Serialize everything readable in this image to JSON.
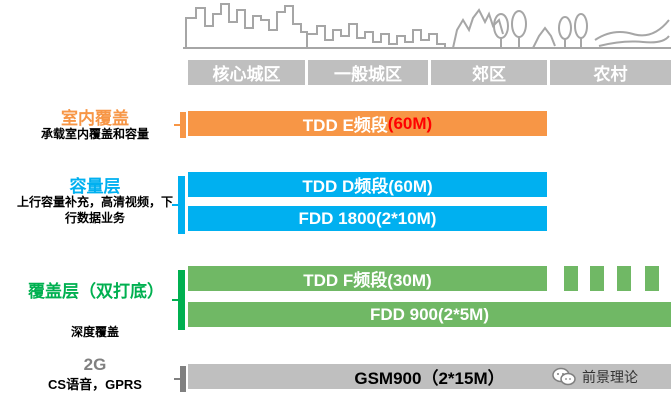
{
  "zones": [
    "核心城区",
    "一般城区",
    "郊区",
    "农村"
  ],
  "layers": {
    "indoor": {
      "title": "室内覆盖",
      "subtitle": "承载室内覆盖和容量",
      "color": "#f79646"
    },
    "capacity": {
      "title": "容量层",
      "subtitle": "上行容量补充，高清视频，下行数据业务",
      "color": "#00b0f0"
    },
    "coverage": {
      "title": "覆盖层（双打底）",
      "subtitle": "深度覆盖",
      "color": "#00b050"
    },
    "legacy": {
      "title": "2G",
      "subtitle": "CS语音，GPRS",
      "color": "#808080"
    }
  },
  "bars": {
    "tdd_e": {
      "text": "TDD E频段",
      "highlight": "(60M)",
      "color": "#f79646"
    },
    "tdd_d": {
      "text": "TDD D频段(60M)",
      "color": "#00b0f0"
    },
    "fdd_1800": {
      "text": "FDD 1800(2*10M)",
      "color": "#00b0f0"
    },
    "tdd_f": {
      "text": "TDD F频段(30M)",
      "color": "#70b865"
    },
    "fdd_900": {
      "text": "FDD 900(2*5M)",
      "color": "#70b865"
    },
    "gsm900": {
      "text": "GSM900（2*15M）",
      "color": "#bfbfbf"
    }
  },
  "watermark": "前景理论"
}
